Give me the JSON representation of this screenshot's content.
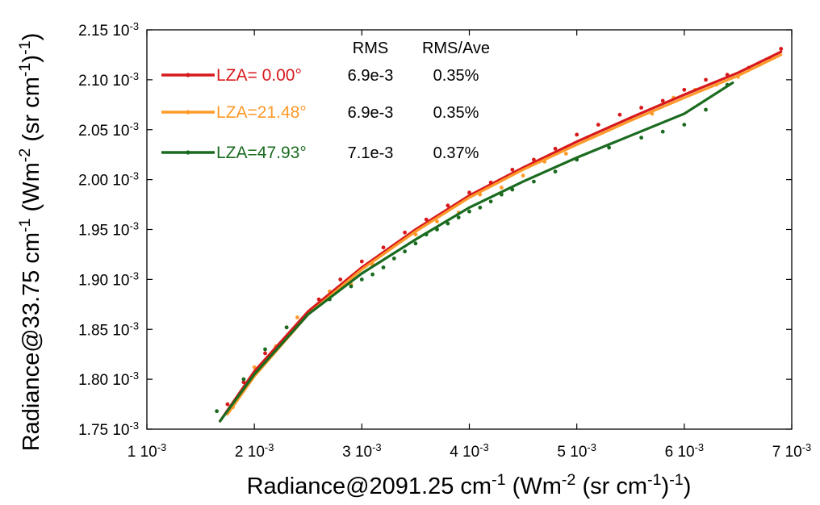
{
  "chart_data": {
    "type": "scatter",
    "xlabel": "Radiance@2091.25 cm-1 (Wm-2 (sr cm-1)-1)",
    "ylabel": "Radiance@33.75 cm-1 (Wm-2 (sr cm-1)-1)",
    "xlim": [
      0.001,
      0.007
    ],
    "ylim": [
      1.75,
      2.15
    ],
    "x_ticks": [
      {
        "value": 0.001,
        "label": "1 10-3"
      },
      {
        "value": 0.002,
        "label": "2 10-3"
      },
      {
        "value": 0.003,
        "label": "3 10-3"
      },
      {
        "value": 0.004,
        "label": "4 10-3"
      },
      {
        "value": 0.005,
        "label": "5 10-3"
      },
      {
        "value": 0.006,
        "label": "6 10-3"
      },
      {
        "value": 0.007,
        "label": "7 10-3"
      }
    ],
    "y_ticks": [
      {
        "value": 1.75,
        "label": "1.75 10-3"
      },
      {
        "value": 1.8,
        "label": "1.80 10-3"
      },
      {
        "value": 1.85,
        "label": "1.85 10-3"
      },
      {
        "value": 1.9,
        "label": "1.90 10-3"
      },
      {
        "value": 1.95,
        "label": "1.95 10-3"
      },
      {
        "value": 2.0,
        "label": "2.00 10-3"
      },
      {
        "value": 2.05,
        "label": "2.05 10-3"
      },
      {
        "value": 2.1,
        "label": "2.10 10-3"
      },
      {
        "value": 2.15,
        "label": "2.15 10-3"
      }
    ],
    "grid": false,
    "legend_position": "top-left",
    "table_headers": {
      "rms": "RMS",
      "rms_ave": "RMS/Ave"
    },
    "series": [
      {
        "name": "LZA= 0.00°",
        "color": "#d7191c",
        "rms": "6.9e-3",
        "rms_ave": "0.35%",
        "fit_line": {
          "x": [
            0.00168,
            0.002,
            0.0025,
            0.003,
            0.0035,
            0.004,
            0.0045,
            0.005,
            0.0055,
            0.006,
            0.0065,
            0.0069
          ],
          "y": [
            1.758,
            1.808,
            1.868,
            1.912,
            1.95,
            1.984,
            2.012,
            2.038,
            2.062,
            2.085,
            2.107,
            2.128
          ]
        },
        "points": {
          "x": [
            0.00175,
            0.0019,
            0.0021,
            0.0023,
            0.0026,
            0.0028,
            0.003,
            0.0032,
            0.0034,
            0.0036,
            0.0038,
            0.004,
            0.0042,
            0.0044,
            0.0046,
            0.0048,
            0.005,
            0.0052,
            0.0054,
            0.0056,
            0.0058,
            0.006,
            0.0062,
            0.0064,
            0.0066,
            0.0068,
            0.0069
          ],
          "y": [
            1.775,
            1.797,
            1.826,
            1.852,
            1.88,
            1.9,
            1.918,
            1.932,
            1.947,
            1.96,
            1.974,
            1.987,
            1.997,
            2.01,
            2.02,
            2.031,
            2.045,
            2.055,
            2.065,
            2.072,
            2.079,
            2.09,
            2.1,
            2.105,
            2.112,
            2.122,
            2.131
          ]
        }
      },
      {
        "name": "LZA=21.48°",
        "color": "#fd9a2a",
        "rms": "6.9e-3",
        "rms_ave": "0.35%",
        "fit_line": {
          "x": [
            0.00175,
            0.002,
            0.0025,
            0.003,
            0.0035,
            0.004,
            0.0045,
            0.005,
            0.0055,
            0.006,
            0.0065,
            0.0069
          ],
          "y": [
            1.765,
            1.803,
            1.865,
            1.91,
            1.948,
            1.982,
            2.01,
            2.035,
            2.059,
            2.082,
            2.104,
            2.125
          ]
        },
        "points": {
          "x": [
            0.0018,
            0.002,
            0.0022,
            0.0024,
            0.0027,
            0.0029,
            0.0031,
            0.0033,
            0.0035,
            0.0037,
            0.0039,
            0.0041,
            0.0043,
            0.0045,
            0.0047,
            0.0049,
            0.0051,
            0.0053,
            0.0055,
            0.0057,
            0.0059,
            0.0061,
            0.0063,
            0.0065,
            0.0067
          ],
          "y": [
            1.772,
            1.812,
            1.833,
            1.862,
            1.888,
            1.895,
            1.915,
            1.934,
            1.945,
            1.958,
            1.967,
            1.985,
            1.992,
            2.004,
            2.018,
            2.026,
            2.042,
            2.05,
            2.06,
            2.066,
            2.082,
            2.09,
            2.095,
            2.103,
            2.115
          ]
        }
      },
      {
        "name": "LZA=47.93°",
        "color": "#1a6b1f",
        "rms": "7.1e-3",
        "rms_ave": "0.37%",
        "fit_line": {
          "x": [
            0.00168,
            0.002,
            0.0025,
            0.003,
            0.0035,
            0.004,
            0.0045,
            0.005,
            0.0055,
            0.006,
            0.00645
          ],
          "y": [
            1.758,
            1.805,
            1.865,
            1.906,
            1.94,
            1.972,
            1.998,
            2.022,
            2.044,
            2.066,
            2.097
          ]
        },
        "points": {
          "x": [
            0.00165,
            0.0019,
            0.0021,
            0.0023,
            0.0025,
            0.0027,
            0.0029,
            0.003,
            0.0031,
            0.0032,
            0.0033,
            0.0034,
            0.0035,
            0.0036,
            0.0037,
            0.0038,
            0.0039,
            0.004,
            0.0041,
            0.0042,
            0.0043,
            0.0044,
            0.0046,
            0.0048,
            0.005,
            0.0053,
            0.0056,
            0.0058,
            0.006,
            0.0062,
            0.0064
          ],
          "y": [
            1.768,
            1.8,
            1.83,
            1.852,
            1.867,
            1.88,
            1.893,
            1.9,
            1.905,
            1.912,
            1.921,
            1.928,
            1.936,
            1.945,
            1.95,
            1.956,
            1.962,
            1.968,
            1.972,
            1.978,
            1.985,
            1.99,
            1.998,
            2.008,
            2.02,
            2.032,
            2.042,
            2.048,
            2.055,
            2.07,
            2.095
          ]
        }
      }
    ]
  }
}
